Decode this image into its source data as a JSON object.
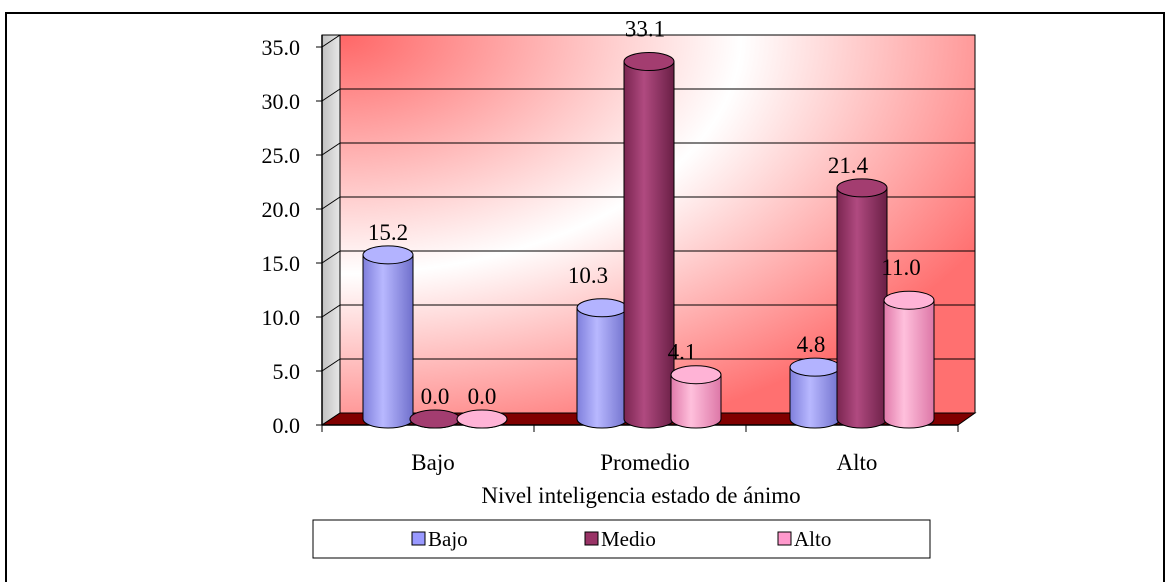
{
  "chart_data": {
    "type": "bar",
    "style": "3d-cylinder",
    "categories": [
      "Bajo",
      "Promedio",
      "Alto"
    ],
    "series": [
      {
        "name": "Bajo",
        "values": [
          15.2,
          10.3,
          4.8
        ],
        "color": "#9999ff"
      },
      {
        "name": "Medio",
        "values": [
          0.0,
          33.1,
          21.4
        ],
        "color": "#993366"
      },
      {
        "name": "Alto",
        "values": [
          0.0,
          4.1,
          11.0
        ],
        "color": "#ff99cc"
      }
    ],
    "y_ticks": [
      "0.0",
      "5.0",
      "10.0",
      "15.0",
      "20.0",
      "25.0",
      "30.0",
      "35.0"
    ],
    "data_labels": [
      [
        "15.2",
        "10.3",
        "4.8"
      ],
      [
        "0.0",
        "33.1",
        "21.4"
      ],
      [
        "0.0",
        "4.1",
        "11.0"
      ]
    ],
    "xlabel": "Nivel inteligencia estado de ánimo",
    "ylabel": "",
    "ylim": [
      0,
      35
    ],
    "grid": true,
    "legend_position": "bottom",
    "colors": {
      "wall_accent": "#ff6666",
      "floor": "#800000"
    }
  }
}
